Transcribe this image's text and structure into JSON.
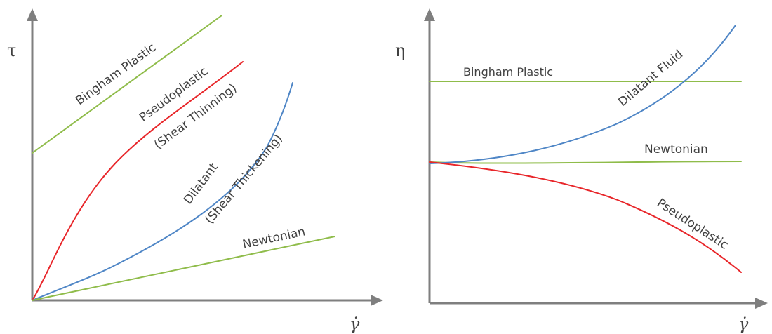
{
  "colors": {
    "axis": "#7f7f7f",
    "newtonian": "#8fbc4a",
    "bingham": "#8fbc4a",
    "pseudoplastic": "#e8262a",
    "dilatant": "#4f86c6",
    "text": "#404040"
  },
  "left_panel": {
    "y_symbol": "τ",
    "x_symbol": "γ̇",
    "labels": {
      "bingham": "Bingham Plastic",
      "pseudoplastic_1": "Pseudoplastic",
      "pseudoplastic_2": "(Shear Thinning)",
      "dilatant_1": "Dilatant",
      "dilatant_2": "(Shear Thickening)",
      "newtonian": "Newtonian"
    }
  },
  "right_panel": {
    "y_symbol": "η",
    "x_symbol": "γ̇",
    "labels": {
      "bingham": "Bingham Plastic",
      "dilatant": "Dilatant Fluid",
      "newtonian": "Newtonian",
      "pseudoplastic": "Pseudoplastic"
    }
  }
}
